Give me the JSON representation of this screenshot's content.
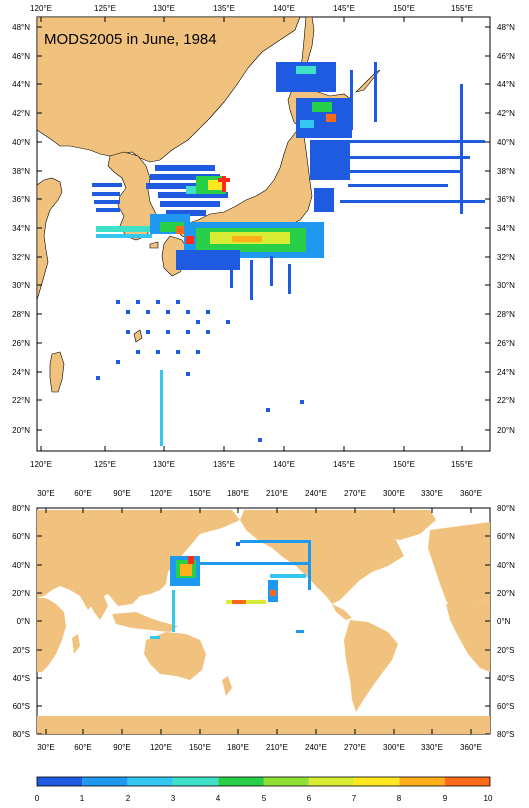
{
  "top_map": {
    "title": "MODS2005 in June, 1984",
    "lon_labels": [
      "120°E",
      "125°E",
      "130°E",
      "135°E",
      "140°E",
      "145°E",
      "150°E",
      "155°E"
    ],
    "lat_labels": [
      "20°N",
      "22°N",
      "24°N",
      "26°N",
      "28°N",
      "30°N",
      "32°N",
      "34°N",
      "36°N",
      "38°N",
      "40°N",
      "42°N",
      "44°N",
      "46°N",
      "48°N"
    ]
  },
  "bottom_map": {
    "lon_labels": [
      "30°E",
      "60°E",
      "90°E",
      "120°E",
      "150°E",
      "180°E",
      "210°E",
      "240°E",
      "270°E",
      "300°E",
      "330°E",
      "360°E"
    ],
    "lat_labels": [
      "80°S",
      "60°S",
      "40°S",
      "20°S",
      "0°N",
      "20°N",
      "40°N",
      "60°N",
      "80°N"
    ]
  },
  "colorbar": {
    "labels": [
      "0",
      "1",
      "2",
      "3",
      "4",
      "5",
      "6",
      "7",
      "8",
      "9",
      "10"
    ],
    "colors": [
      "#1f5be0",
      "#1f98f0",
      "#34c8f0",
      "#3fe0c8",
      "#28d04a",
      "#8ee034",
      "#d8ec34",
      "#ffe820",
      "#ffae1c",
      "#ff6a1a"
    ]
  },
  "colors": {
    "land": "#f1c27d",
    "ocean": "#ffffff"
  }
}
